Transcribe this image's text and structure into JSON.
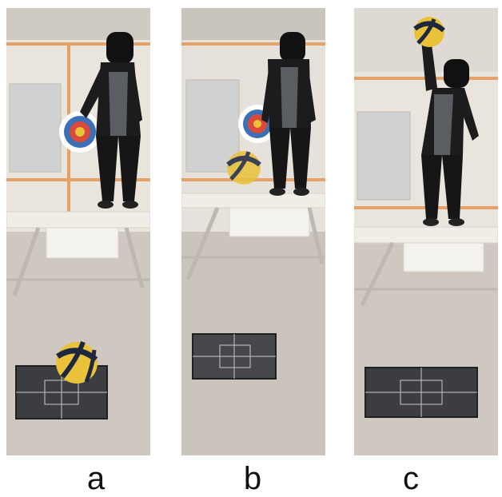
{
  "panels": [
    {
      "id": "a",
      "label": "a"
    },
    {
      "id": "b",
      "label": "b"
    },
    {
      "id": "c",
      "label": "c"
    }
  ],
  "colors": {
    "wall": "#e9e4dc",
    "wall_trim": "#e5a268",
    "floor": "#cfc8c1",
    "ball_yellow": "#e9c23a",
    "ball_dark": "#1e2740",
    "clothing": "#1c1c1c",
    "shirt": "#5a5e63",
    "bench": "#f0ede6",
    "force_plate": "#3b3d40",
    "target_red": "#d94a3a",
    "target_blue": "#3b6fb6"
  },
  "icons": [
    "person-figure",
    "volleyball",
    "force-plate",
    "wall-target",
    "bench"
  ]
}
